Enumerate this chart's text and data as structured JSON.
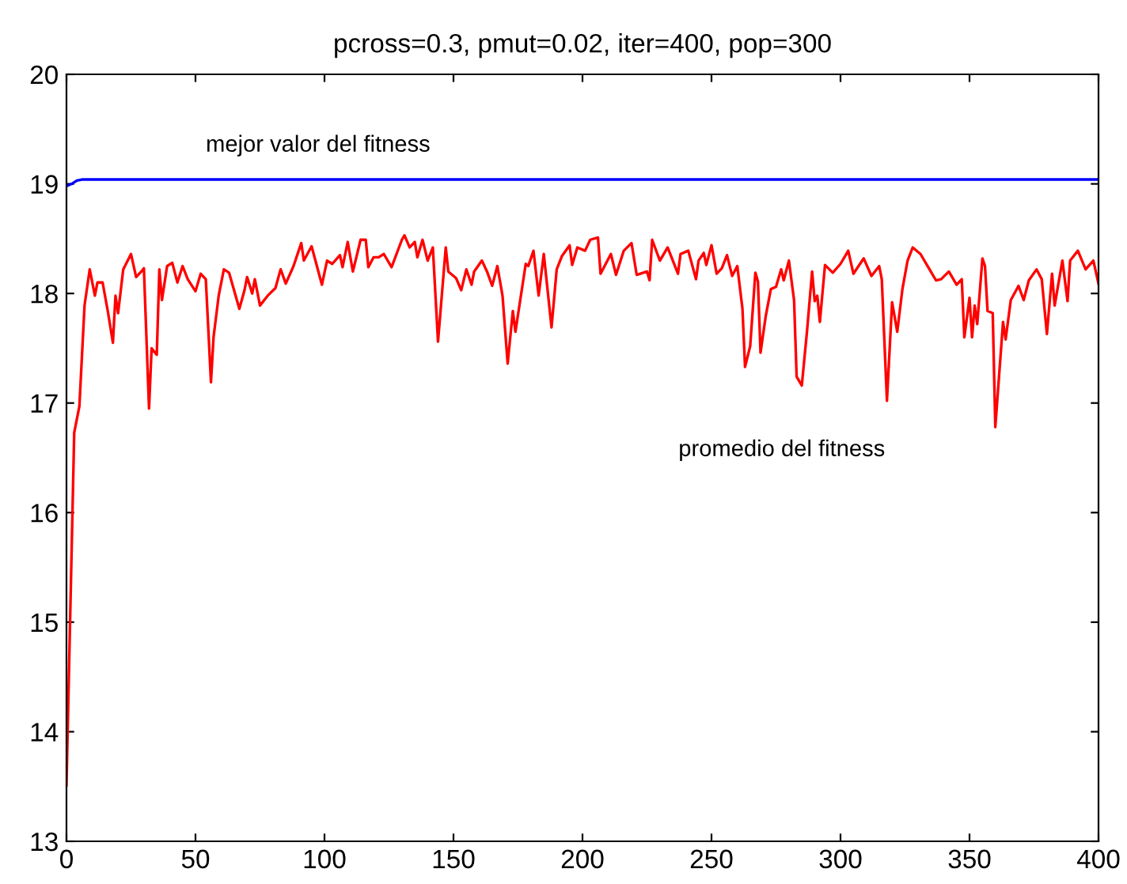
{
  "chart_data": {
    "type": "line",
    "title": "pcross=0.3, pmut=0.02, iter=400, pop=300",
    "xlim": [
      0,
      400
    ],
    "xticks": [
      0,
      50,
      100,
      150,
      200,
      250,
      300,
      350,
      400
    ],
    "ylim": [
      13,
      20
    ],
    "yticks": [
      13,
      14,
      15,
      16,
      17,
      18,
      19,
      20
    ],
    "grid": false,
    "legend": false,
    "marker": "none",
    "line_style": "solid",
    "annotations": [
      "mejor valor del fitness",
      "promedio del fitness"
    ],
    "series": [
      {
        "color": "#0000ff",
        "x": [
          0,
          2,
          4,
          6,
          400
        ],
        "values": [
          18.98,
          19.0,
          19.03,
          19.04,
          19.04
        ]
      },
      {
        "color": "#ff0000",
        "x": [
          0,
          3,
          5,
          7,
          9,
          11,
          12,
          14,
          16,
          18,
          19,
          20,
          22,
          25,
          27,
          29,
          30,
          32,
          33,
          35,
          36,
          37,
          39,
          41,
          43,
          45,
          47,
          50,
          52,
          54,
          56,
          57,
          59,
          61,
          63,
          67,
          69,
          70,
          72,
          73,
          75,
          78,
          81,
          83,
          85,
          88,
          91,
          92,
          95,
          99,
          101,
          103,
          106,
          107,
          109,
          111,
          114,
          116,
          117,
          119,
          121,
          123,
          126,
          130,
          131,
          133,
          135,
          136,
          138,
          140,
          142,
          144,
          147,
          148,
          151,
          153,
          155,
          157,
          158,
          161,
          163,
          165,
          167,
          169,
          171,
          173,
          174,
          178,
          179,
          181,
          183,
          185,
          188,
          190,
          192,
          195,
          196,
          198,
          201,
          203,
          206,
          207,
          211,
          213,
          216,
          219,
          221,
          225,
          226,
          227,
          230,
          233,
          237,
          238,
          241,
          244,
          245,
          247,
          248,
          250,
          252,
          254,
          256,
          258,
          260,
          262,
          263,
          265,
          267,
          268,
          269,
          271,
          273,
          275,
          277,
          278,
          280,
          282,
          283,
          285,
          287,
          289,
          290,
          291,
          292,
          294,
          297,
          300,
          303,
          305,
          309,
          312,
          315,
          316,
          318,
          320,
          322,
          324,
          326,
          328,
          331,
          334,
          337,
          339,
          342,
          345,
          347,
          348,
          350,
          351,
          352,
          353,
          355,
          356,
          357,
          359,
          360,
          363,
          364,
          366,
          369,
          371,
          373,
          376,
          378,
          380,
          382,
          383,
          386,
          388,
          389,
          392,
          395,
          398,
          400
        ],
        "values": [
          13.51,
          16.73,
          16.97,
          17.89,
          18.22,
          17.98,
          18.1,
          18.1,
          17.84,
          17.55,
          17.98,
          17.82,
          18.22,
          18.36,
          18.15,
          18.2,
          18.23,
          16.95,
          17.5,
          17.44,
          18.22,
          17.94,
          18.25,
          18.28,
          18.1,
          18.25,
          18.13,
          18.02,
          18.18,
          18.13,
          17.19,
          17.6,
          17.98,
          18.22,
          18.19,
          17.86,
          18.03,
          18.15,
          18.0,
          18.13,
          17.89,
          17.98,
          18.05,
          18.22,
          18.09,
          18.25,
          18.46,
          18.3,
          18.43,
          18.08,
          18.3,
          18.27,
          18.35,
          18.24,
          18.47,
          18.2,
          18.49,
          18.49,
          18.24,
          18.33,
          18.33,
          18.36,
          18.24,
          18.49,
          18.53,
          18.42,
          18.47,
          18.33,
          18.49,
          18.3,
          18.42,
          17.56,
          18.42,
          18.2,
          18.14,
          18.03,
          18.22,
          18.08,
          18.2,
          18.3,
          18.2,
          18.07,
          18.25,
          17.98,
          17.36,
          17.84,
          17.65,
          18.27,
          18.25,
          18.39,
          17.98,
          18.36,
          17.69,
          18.22,
          18.34,
          18.44,
          18.26,
          18.42,
          18.39,
          18.49,
          18.51,
          18.18,
          18.36,
          18.17,
          18.39,
          18.46,
          18.17,
          18.2,
          18.12,
          18.49,
          18.3,
          18.42,
          18.18,
          18.36,
          18.39,
          18.13,
          18.3,
          18.37,
          18.26,
          18.44,
          18.18,
          18.23,
          18.35,
          18.16,
          18.25,
          17.86,
          17.33,
          17.52,
          18.19,
          18.11,
          17.46,
          17.79,
          18.04,
          18.06,
          18.22,
          18.12,
          18.3,
          17.94,
          17.24,
          17.16,
          17.65,
          18.2,
          17.93,
          17.98,
          17.74,
          18.26,
          18.19,
          18.27,
          18.39,
          18.18,
          18.32,
          18.16,
          18.25,
          18.13,
          17.02,
          17.92,
          17.65,
          18.04,
          18.3,
          18.42,
          18.36,
          18.24,
          18.12,
          18.13,
          18.2,
          18.08,
          18.13,
          17.6,
          17.96,
          17.6,
          17.89,
          17.72,
          18.32,
          18.25,
          17.84,
          17.82,
          16.78,
          17.74,
          17.58,
          17.94,
          18.07,
          17.94,
          18.12,
          18.22,
          18.13,
          17.63,
          18.18,
          17.89,
          18.3,
          17.93,
          18.3,
          18.39,
          18.22,
          18.3,
          18.09
        ]
      }
    ]
  }
}
